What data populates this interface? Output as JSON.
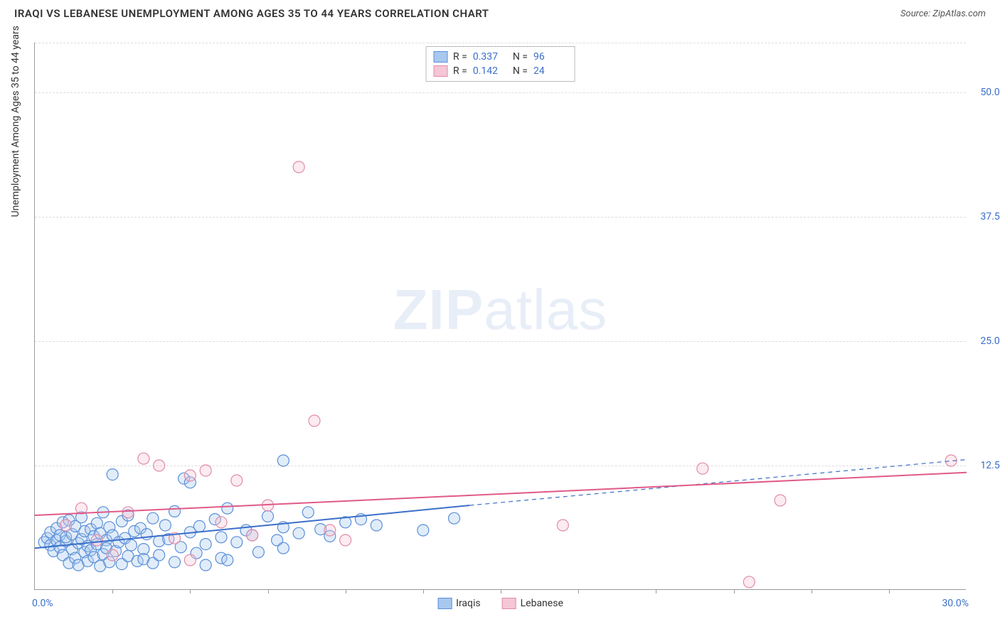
{
  "title": "IRAQI VS LEBANESE UNEMPLOYMENT AMONG AGES 35 TO 44 YEARS CORRELATION CHART",
  "source": "Source: ZipAtlas.com",
  "y_axis_title": "Unemployment Among Ages 35 to 44 years",
  "watermark_bold": "ZIP",
  "watermark_light": "atlas",
  "chart": {
    "type": "scatter",
    "xlim": [
      0,
      30
    ],
    "ylim": [
      0,
      55
    ],
    "x_min_label": "0.0%",
    "x_max_label": "30.0%",
    "y_ticks": [
      12.5,
      25.0,
      37.5,
      50.0
    ],
    "y_tick_labels": [
      "12.5%",
      "25.0%",
      "37.5%",
      "50.0%"
    ],
    "x_ticks_minor": [
      2.5,
      5,
      7.5,
      10,
      12.5,
      15,
      17.5,
      20,
      22.5,
      25,
      27.5
    ],
    "grid_color": "#dddddd",
    "axis_color": "#999999",
    "tick_label_color": "#3b6fc9",
    "marker_radius": 8,
    "marker_stroke_width": 1.2,
    "marker_fill_opacity": 0.35,
    "series": [
      {
        "name": "Iraqis",
        "label": "Iraqis",
        "color_stroke": "#5a8fd8",
        "color_fill": "#a8c8ee",
        "r_value": "0.337",
        "n_value": "96",
        "trend": {
          "x1": 0,
          "y1": 4.2,
          "x2": 14,
          "y2": 8.5,
          "extend_x2": 30,
          "extend_y2": 13.1,
          "stroke": "#3b6fc9",
          "width": 2
        },
        "points": [
          [
            0.3,
            4.8
          ],
          [
            0.4,
            5.2
          ],
          [
            0.5,
            4.5
          ],
          [
            0.5,
            5.8
          ],
          [
            0.6,
            3.9
          ],
          [
            0.7,
            5.0
          ],
          [
            0.7,
            6.2
          ],
          [
            0.8,
            4.3
          ],
          [
            0.8,
            5.5
          ],
          [
            0.9,
            3.5
          ],
          [
            0.9,
            6.8
          ],
          [
            1.0,
            4.9
          ],
          [
            1.0,
            5.3
          ],
          [
            1.1,
            2.7
          ],
          [
            1.1,
            7.0
          ],
          [
            1.2,
            4.1
          ],
          [
            1.2,
            5.6
          ],
          [
            1.3,
            3.2
          ],
          [
            1.3,
            6.4
          ],
          [
            1.4,
            4.7
          ],
          [
            1.4,
            2.5
          ],
          [
            1.5,
            5.1
          ],
          [
            1.5,
            7.3
          ],
          [
            1.6,
            3.8
          ],
          [
            1.6,
            5.9
          ],
          [
            1.7,
            4.4
          ],
          [
            1.7,
            2.9
          ],
          [
            1.8,
            6.1
          ],
          [
            1.8,
            4.0
          ],
          [
            1.9,
            5.4
          ],
          [
            1.9,
            3.3
          ],
          [
            2.0,
            6.7
          ],
          [
            2.0,
            4.6
          ],
          [
            2.1,
            2.4
          ],
          [
            2.1,
            5.7
          ],
          [
            2.2,
            7.8
          ],
          [
            2.2,
            3.6
          ],
          [
            2.3,
            5.0
          ],
          [
            2.3,
            4.2
          ],
          [
            2.4,
            6.3
          ],
          [
            2.4,
            2.8
          ],
          [
            2.5,
            5.5
          ],
          [
            2.5,
            11.6
          ],
          [
            2.6,
            3.9
          ],
          [
            2.7,
            4.8
          ],
          [
            2.8,
            6.9
          ],
          [
            2.8,
            2.6
          ],
          [
            2.9,
            5.2
          ],
          [
            3.0,
            3.4
          ],
          [
            3.0,
            7.5
          ],
          [
            3.1,
            4.5
          ],
          [
            3.2,
            5.9
          ],
          [
            3.3,
            2.9
          ],
          [
            3.4,
            6.2
          ],
          [
            3.5,
            4.1
          ],
          [
            3.5,
            3.1
          ],
          [
            3.6,
            5.6
          ],
          [
            3.8,
            7.2
          ],
          [
            3.8,
            2.7
          ],
          [
            4.0,
            4.9
          ],
          [
            4.0,
            3.5
          ],
          [
            4.2,
            6.5
          ],
          [
            4.3,
            5.1
          ],
          [
            4.5,
            2.8
          ],
          [
            4.5,
            7.9
          ],
          [
            4.7,
            4.3
          ],
          [
            4.8,
            11.2
          ],
          [
            5.0,
            5.8
          ],
          [
            5.0,
            10.8
          ],
          [
            5.2,
            3.7
          ],
          [
            5.3,
            6.4
          ],
          [
            5.5,
            4.6
          ],
          [
            5.5,
            2.5
          ],
          [
            5.8,
            7.1
          ],
          [
            6.0,
            5.3
          ],
          [
            6.0,
            3.2
          ],
          [
            6.2,
            3.0
          ],
          [
            6.2,
            8.2
          ],
          [
            6.5,
            4.8
          ],
          [
            6.8,
            6.0
          ],
          [
            7.0,
            5.5
          ],
          [
            7.2,
            3.8
          ],
          [
            7.5,
            7.4
          ],
          [
            7.8,
            5.0
          ],
          [
            8.0,
            13.0
          ],
          [
            8.0,
            6.3
          ],
          [
            8.0,
            4.2
          ],
          [
            8.5,
            5.7
          ],
          [
            8.8,
            7.8
          ],
          [
            9.2,
            6.1
          ],
          [
            9.5,
            5.4
          ],
          [
            10.0,
            6.8
          ],
          [
            10.5,
            7.1
          ],
          [
            11.0,
            6.5
          ],
          [
            12.5,
            6.0
          ],
          [
            13.5,
            7.2
          ]
        ]
      },
      {
        "name": "Lebanese",
        "label": "Lebanese",
        "color_stroke": "#e08ca8",
        "color_fill": "#f5c6d5",
        "r_value": "0.142",
        "n_value": "24",
        "trend": {
          "x1": 0,
          "y1": 7.5,
          "x2": 30,
          "y2": 11.8,
          "stroke": "#e05a88",
          "width": 2
        },
        "points": [
          [
            1.0,
            6.5
          ],
          [
            1.5,
            8.2
          ],
          [
            2.0,
            5.0
          ],
          [
            2.5,
            3.5
          ],
          [
            3.0,
            7.8
          ],
          [
            3.5,
            13.2
          ],
          [
            4.0,
            12.5
          ],
          [
            4.5,
            5.2
          ],
          [
            5.0,
            11.5
          ],
          [
            5.0,
            3.0
          ],
          [
            5.5,
            12.0
          ],
          [
            6.0,
            6.8
          ],
          [
            6.5,
            11.0
          ],
          [
            7.0,
            5.5
          ],
          [
            7.5,
            8.5
          ],
          [
            8.5,
            42.5
          ],
          [
            9.0,
            17.0
          ],
          [
            9.5,
            6.0
          ],
          [
            10.0,
            5.0
          ],
          [
            17.0,
            6.5
          ],
          [
            21.5,
            12.2
          ],
          [
            23.0,
            0.8
          ],
          [
            24.0,
            9.0
          ],
          [
            29.5,
            13.0
          ]
        ]
      }
    ]
  },
  "legend_r_label": "R =",
  "legend_n_label": "N ="
}
